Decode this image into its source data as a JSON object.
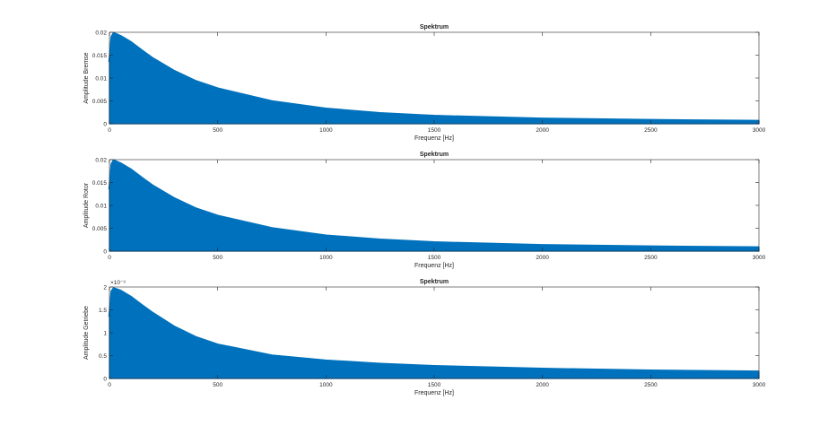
{
  "figure": {
    "background": "#ffffff",
    "series_color": "#0072BD"
  },
  "chart_data": [
    {
      "type": "area",
      "title": "Spektrum",
      "xlabel": "Frequenz [Hz]",
      "ylabel": "Amplitude Bremse",
      "xlim": [
        0,
        3000
      ],
      "ylim": [
        0,
        0.02
      ],
      "xticks": [
        "0",
        "500",
        "1000",
        "1500",
        "2000",
        "2500",
        "3000"
      ],
      "yticks": [
        "0",
        "0.005",
        "0.01",
        "0.015",
        "0.02"
      ],
      "exponent_label": "",
      "grid": false,
      "series": [
        {
          "x": [
            0,
            10,
            20,
            50,
            100,
            150,
            200,
            300,
            400,
            500,
            750,
            1000,
            1250,
            1500,
            2000,
            2500,
            3000
          ],
          "y": [
            0.0135,
            0.019,
            0.0198,
            0.0192,
            0.0178,
            0.016,
            0.0143,
            0.0115,
            0.0093,
            0.0077,
            0.0049,
            0.0033,
            0.0023,
            0.0017,
            0.0011,
            0.0008,
            0.0006
          ]
        }
      ]
    },
    {
      "type": "area",
      "title": "Spektrum",
      "xlabel": "Frequenz [Hz]",
      "ylabel": "Amplitude Rotor",
      "xlim": [
        0,
        3000
      ],
      "ylim": [
        0,
        0.02
      ],
      "xticks": [
        "0",
        "500",
        "1000",
        "1500",
        "2000",
        "2500",
        "3000"
      ],
      "yticks": [
        "0",
        "0.005",
        "0.01",
        "0.015",
        "0.02"
      ],
      "exponent_label": "",
      "grid": false,
      "series": [
        {
          "x": [
            0,
            10,
            20,
            50,
            100,
            150,
            200,
            300,
            400,
            500,
            750,
            1000,
            1250,
            1500,
            2000,
            2500,
            3000
          ],
          "y": [
            0.0135,
            0.019,
            0.0198,
            0.0192,
            0.0178,
            0.016,
            0.0143,
            0.0115,
            0.0093,
            0.0077,
            0.005,
            0.0034,
            0.0025,
            0.0019,
            0.0013,
            0.001,
            0.0008
          ]
        }
      ]
    },
    {
      "type": "area",
      "title": "Spektrum",
      "xlabel": "Frequenz [Hz]",
      "ylabel": "Amplitude Getriebe",
      "xlim": [
        0,
        3000
      ],
      "ylim": [
        0,
        2
      ],
      "xticks": [
        "0",
        "500",
        "1000",
        "1500",
        "2000",
        "2500",
        "3000"
      ],
      "yticks": [
        "0",
        "0.5",
        "1",
        "1.5",
        "2"
      ],
      "exponent_label": "×10⁻³",
      "grid": false,
      "series": [
        {
          "x": [
            0,
            10,
            20,
            50,
            100,
            150,
            200,
            300,
            400,
            500,
            750,
            1000,
            1250,
            1500,
            2000,
            2500,
            3000
          ],
          "y": [
            1.35,
            1.9,
            1.97,
            1.92,
            1.78,
            1.6,
            1.43,
            1.13,
            0.9,
            0.74,
            0.5,
            0.39,
            0.32,
            0.27,
            0.21,
            0.17,
            0.15
          ]
        }
      ]
    }
  ]
}
